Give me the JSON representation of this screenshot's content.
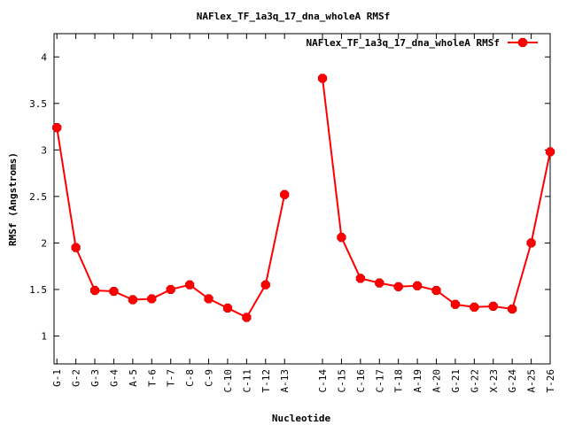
{
  "chart_data": {
    "type": "line",
    "title": "NAFlex_TF_1a3q_17_dna_wholeA RMSf",
    "xlabel": "Nucleotide",
    "ylabel": "RMSf (Angstroms)",
    "ylim": [
      0.7,
      4.25
    ],
    "yticks": [
      1,
      1.5,
      2,
      2.5,
      3,
      3.5,
      4
    ],
    "ytick_labels": [
      "1",
      "1.5",
      "2",
      "2.5",
      "3",
      "3.5",
      "4"
    ],
    "grid": false,
    "legend_position": "top-right",
    "series": [
      {
        "name": "NAFlex_TF_1a3q_17_dna_wholeA RMSf",
        "color": "#ff0000",
        "segments": [
          {
            "categories": [
              "G-1",
              "G-2",
              "G-3",
              "G-4",
              "A-5",
              "T-6",
              "T-7",
              "C-8",
              "C-9",
              "C-10",
              "C-11",
              "T-12",
              "A-13"
            ],
            "x": [
              1,
              2,
              3,
              4,
              5,
              6,
              7,
              8,
              9,
              10,
              11,
              12,
              13
            ],
            "values": [
              3.24,
              1.95,
              1.49,
              1.48,
              1.39,
              1.4,
              1.5,
              1.55,
              1.4,
              1.3,
              1.2,
              1.55,
              2.52
            ]
          },
          {
            "categories": [
              "C-14",
              "C-15",
              "C-16",
              "C-17",
              "T-18",
              "A-19",
              "A-20",
              "G-21",
              "G-22",
              "X-23",
              "G-24",
              "A-25",
              "T-26"
            ],
            "x": [
              15,
              16,
              17,
              18,
              19,
              20,
              21,
              22,
              23,
              24,
              25,
              26,
              27
            ],
            "values": [
              3.77,
              2.06,
              1.62,
              1.57,
              1.53,
              1.54,
              1.49,
              1.34,
              1.31,
              1.32,
              1.29,
              2.0,
              2.98
            ]
          }
        ]
      }
    ]
  }
}
